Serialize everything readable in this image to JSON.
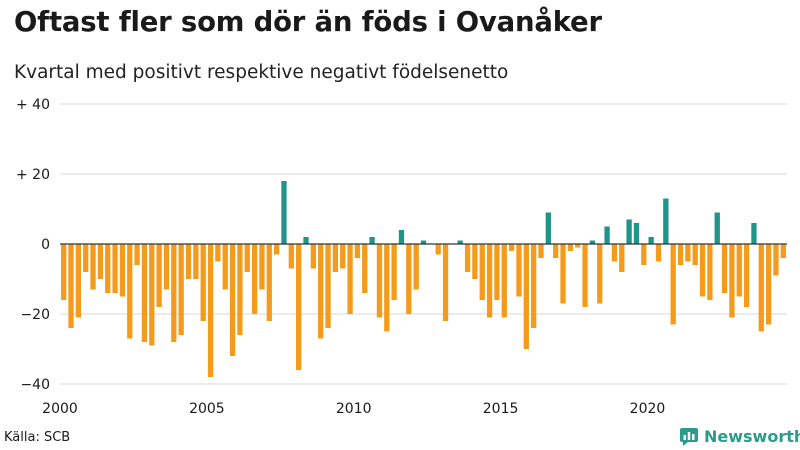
{
  "chart_data": {
    "type": "bar",
    "title": "Oftast fler som dör än föds i Ovanåker",
    "subtitle": "Kvartal med positivt respektive negativt födelsenetto",
    "xlabel": "",
    "ylabel": "",
    "ylim": [
      -40,
      40
    ],
    "yticks": [
      40,
      20,
      0,
      -20,
      -40
    ],
    "ytick_labels": [
      "+ 40",
      "+ 20",
      "0",
      "−20",
      "−40"
    ],
    "x_start_year": 2000,
    "periods_per_year": 4,
    "xticks": [
      2000,
      2005,
      2010,
      2015,
      2020
    ],
    "xtick_labels": [
      "2000",
      "2005",
      "2010",
      "2015",
      "2020"
    ],
    "grid": "horizontal",
    "colors": {
      "positive": "#1f9488",
      "negative": "#f59b1c",
      "grid": "#d9d9d9",
      "zero_line": "#333333"
    },
    "values": [
      -16,
      -24,
      -21,
      -8,
      -13,
      -10,
      -14,
      -14,
      -15,
      -27,
      -6,
      -28,
      -29,
      -18,
      -13,
      -28,
      -26,
      -10,
      -10,
      -22,
      -38,
      -5,
      -13,
      -32,
      -26,
      -8,
      -20,
      -13,
      -22,
      -3,
      18,
      -7,
      -36,
      2,
      -7,
      -27,
      -24,
      -8,
      -7,
      -20,
      -4,
      -14,
      2,
      -21,
      -25,
      -16,
      4,
      -20,
      -13,
      1,
      0,
      -3,
      -22,
      0,
      1,
      -8,
      -10,
      -16,
      -21,
      -16,
      -21,
      -2,
      -15,
      -30,
      -24,
      -4,
      9,
      -4,
      -17,
      -2,
      -1,
      -18,
      1,
      -17,
      5,
      -5,
      -8,
      7,
      6,
      -6,
      2,
      -5,
      13,
      -23,
      -6,
      -5,
      -6,
      -15,
      -16,
      9,
      -14,
      -21,
      -15,
      -18,
      6,
      -25,
      -23,
      -9,
      -4
    ]
  },
  "footer": {
    "source": "Källa: SCB",
    "brand": "Newsworthy",
    "brand_icon": "newsworthy-logo-icon"
  }
}
